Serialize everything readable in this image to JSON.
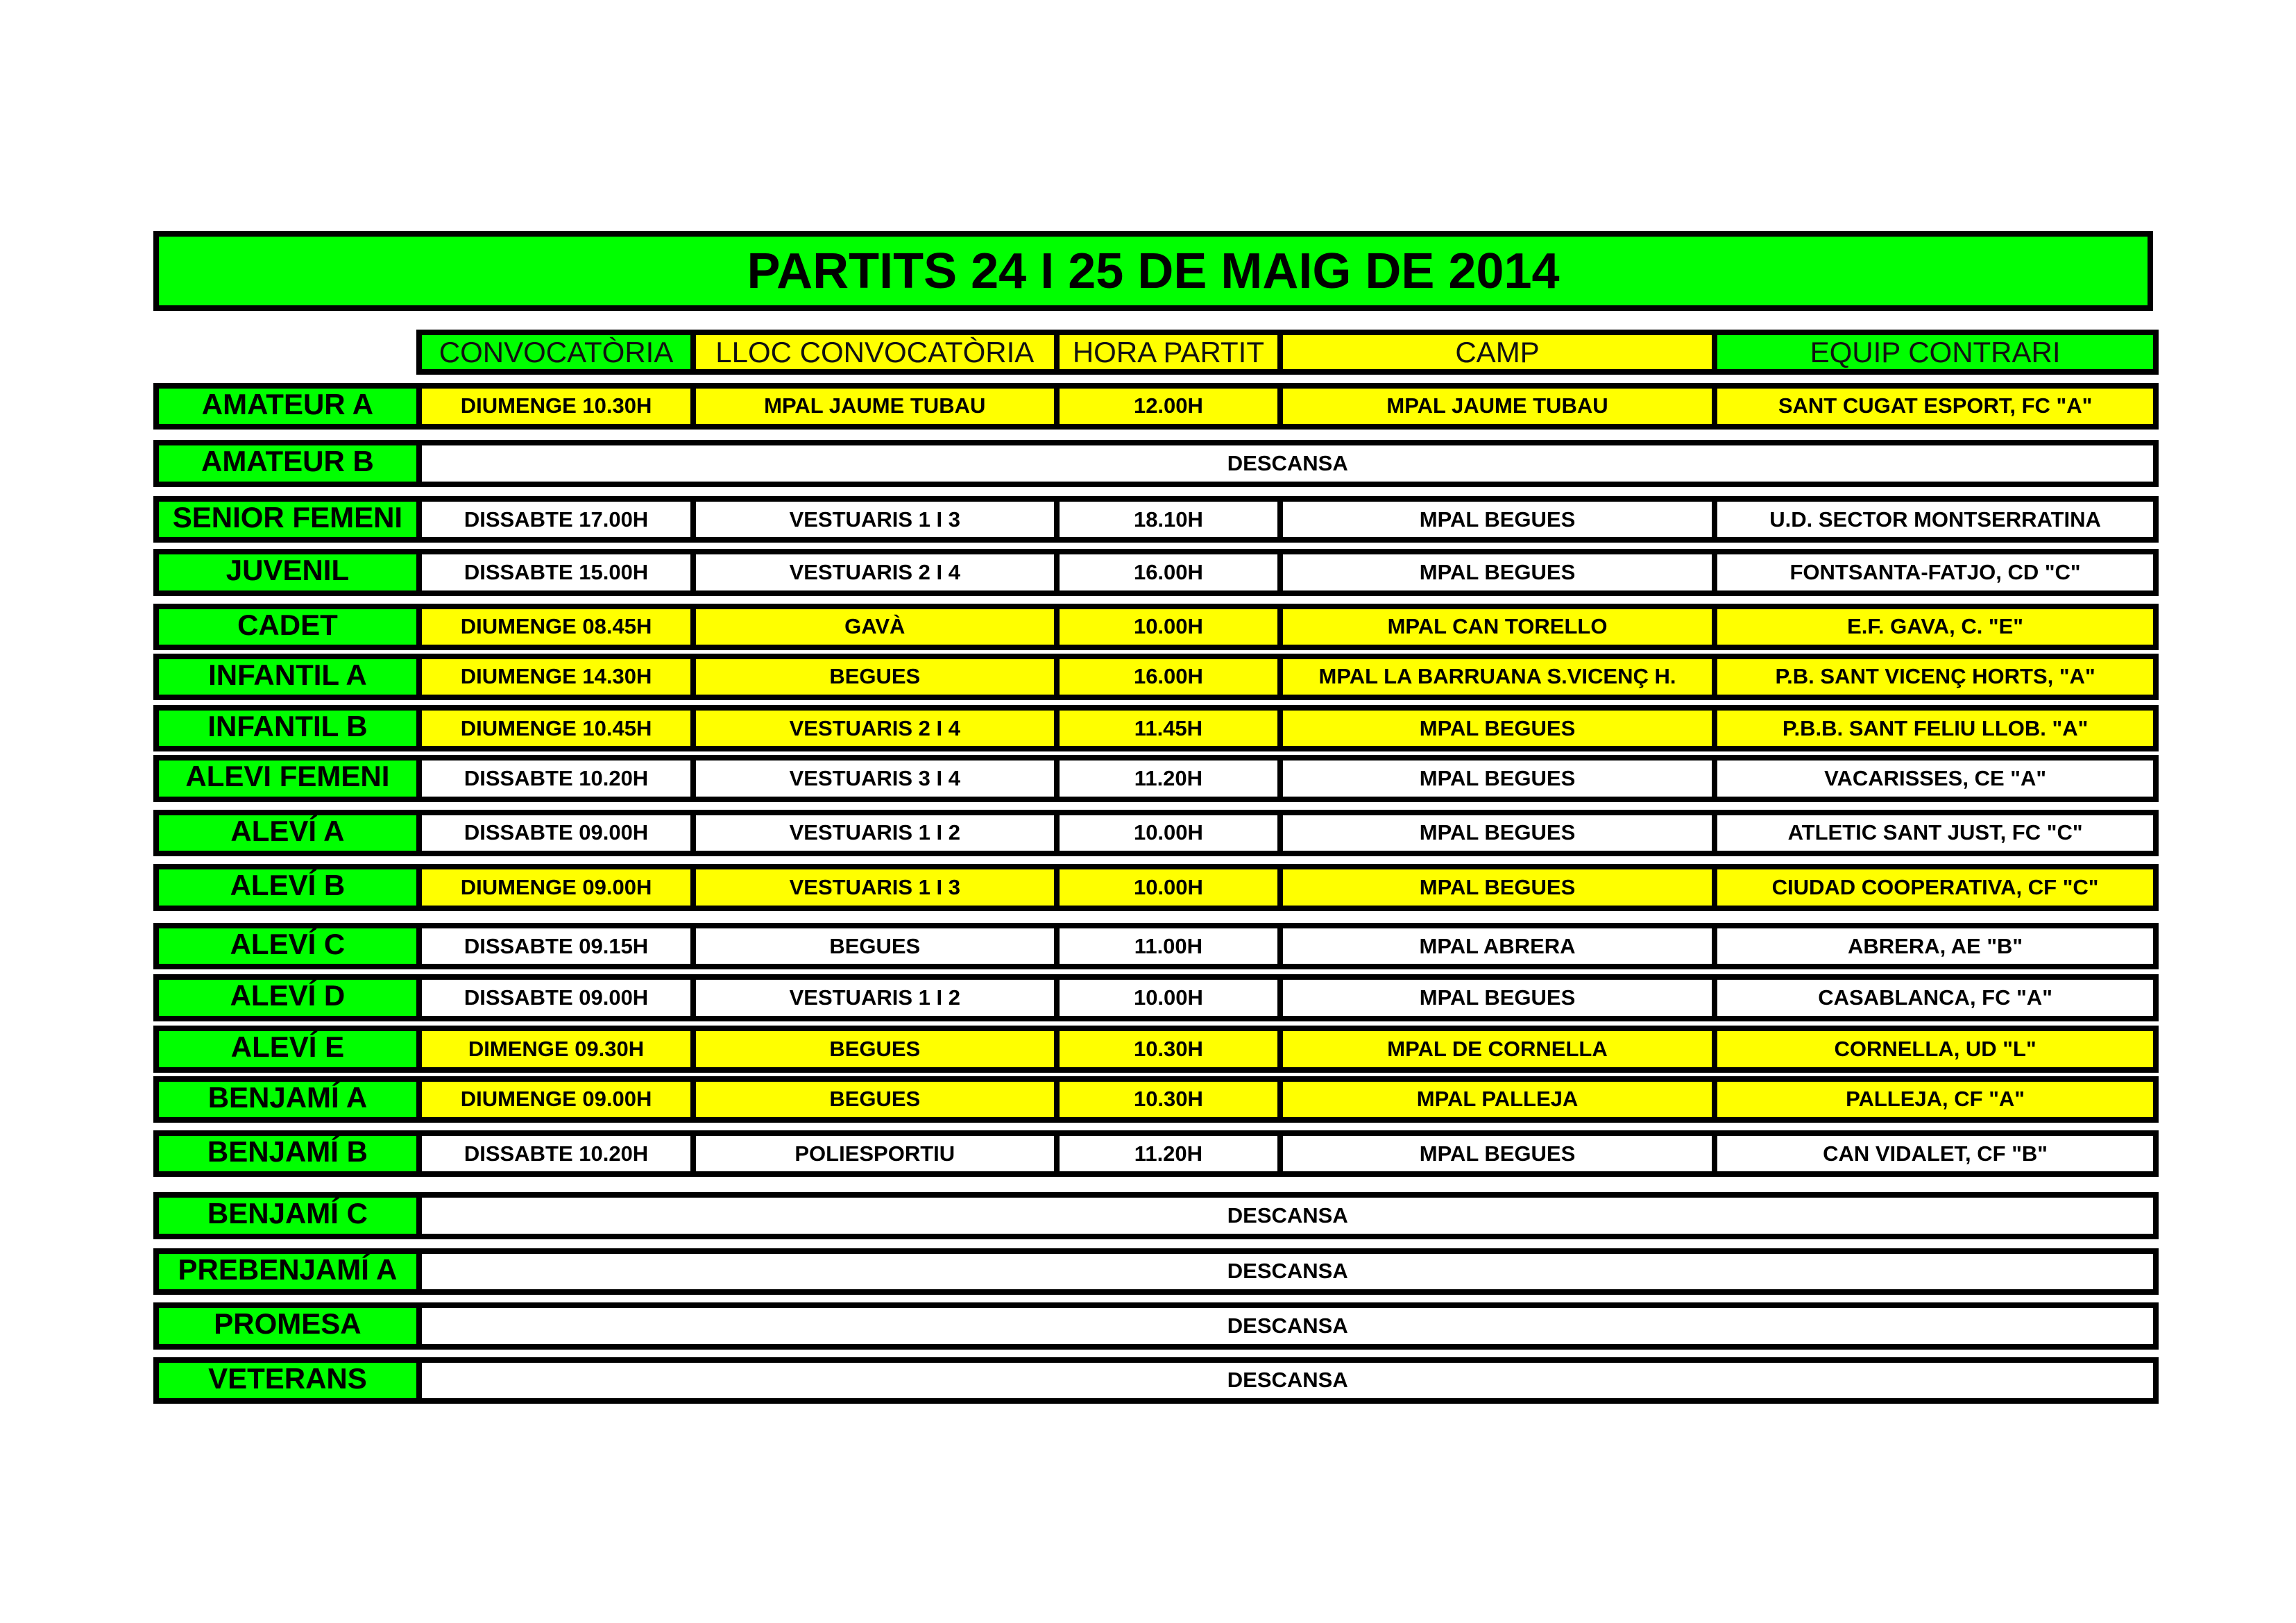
{
  "title": "PARTITS 24 I 25 DE MAIG DE 2014",
  "header": [
    "CONVOCATÒRIA",
    "LLOC CONVOCATÒRIA",
    "HORA PARTIT",
    "CAMP",
    "EQUIP CONTRARI"
  ],
  "rows": [
    {
      "team": "AMATEUR A",
      "color": "#ffff00",
      "cells": [
        "DIUMENGE 10.30H",
        "MPAL JAUME TUBAU",
        "12.00H",
        "MPAL JAUME TUBAU",
        "SANT CUGAT ESPORT, FC \"A\""
      ]
    },
    {
      "team": "AMATEUR B",
      "color": "#ffffff",
      "descansa": "DESCANSA"
    },
    {
      "team": "SENIOR FEMENI",
      "color": "#ffffff",
      "cells": [
        "DISSABTE 17.00H",
        "VESTUARIS 1 I 3",
        "18.10H",
        "MPAL BEGUES",
        "U.D. SECTOR MONTSERRATINA"
      ]
    },
    {
      "team": "JUVENIL",
      "color": "#ffffff",
      "cells": [
        "DISSABTE 15.00H",
        "VESTUARIS 2 I 4",
        "16.00H",
        "MPAL BEGUES",
        "FONTSANTA-FATJO, CD \"C\""
      ]
    },
    {
      "team": "CADET",
      "color": "#ffff00",
      "cells": [
        "DIUMENGE 08.45H",
        "GAVÀ",
        "10.00H",
        "MPAL CAN TORELLO",
        "E.F. GAVA, C. \"E\""
      ]
    },
    {
      "team": "INFANTIL A",
      "color": "#ffff00",
      "cells": [
        "DIUMENGE 14.30H",
        "BEGUES",
        "16.00H",
        "MPAL LA BARRUANA S.VICENÇ H.",
        "P.B. SANT VICENÇ HORTS, \"A\""
      ]
    },
    {
      "team": "INFANTIL B",
      "color": "#ffff00",
      "cells": [
        "DIUMENGE 10.45H",
        "VESTUARIS 2 I 4",
        "11.45H",
        "MPAL BEGUES",
        "P.B.B. SANT FELIU LLOB. \"A\""
      ]
    },
    {
      "team": "ALEVI FEMENI",
      "color": "#ffffff",
      "cells": [
        "DISSABTE 10.20H",
        "VESTUARIS 3 I 4",
        "11.20H",
        "MPAL BEGUES",
        "VACARISSES, CE \"A\""
      ]
    },
    {
      "team": "ALEVÍ A",
      "color": "#ffffff",
      "cells": [
        "DISSABTE 09.00H",
        "VESTUARIS 1 I 2",
        "10.00H",
        "MPAL BEGUES",
        "ATLETIC SANT JUST, FC \"C\""
      ]
    },
    {
      "team": "ALEVÍ B",
      "color": "#ffff00",
      "cells": [
        "DIUMENGE 09.00H",
        "VESTUARIS 1 I 3",
        "10.00H",
        "MPAL BEGUES",
        "CIUDAD COOPERATIVA, CF \"C\""
      ]
    },
    {
      "team": "ALEVÍ C",
      "color": "#ffffff",
      "cells": [
        "DISSABTE 09.15H",
        "BEGUES",
        "11.00H",
        "MPAL ABRERA",
        "ABRERA, AE \"B\""
      ]
    },
    {
      "team": "ALEVÍ D",
      "color": "#ffffff",
      "cells": [
        "DISSABTE 09.00H",
        "VESTUARIS 1 I 2",
        "10.00H",
        "MPAL BEGUES",
        "CASABLANCA, FC \"A\""
      ]
    },
    {
      "team": "ALEVÍ E",
      "color": "#ffff00",
      "cells": [
        "DIMENGE 09.30H",
        "BEGUES",
        "10.30H",
        "MPAL DE CORNELLA",
        "CORNELLA, UD \"L\""
      ]
    },
    {
      "team": "BENJAMÍ A",
      "color": "#ffff00",
      "cells": [
        "DIUMENGE 09.00H",
        "BEGUES",
        "10.30H",
        "MPAL PALLEJA",
        "PALLEJA, CF \"A\""
      ]
    },
    {
      "team": "BENJAMÍ B",
      "color": "#ffffff",
      "cells": [
        "DISSABTE 10.20H",
        "POLIESPORTIU",
        "11.20H",
        "MPAL BEGUES",
        "CAN VIDALET, CF \"B\""
      ]
    },
    {
      "team": "BENJAMÍ C",
      "color": "#ffffff",
      "descansa": "DESCANSA"
    },
    {
      "team": "PREBENJAMÍ A",
      "color": "#ffffff",
      "descansa": "DESCANSA"
    },
    {
      "team": "PROMESA",
      "color": "#ffffff",
      "descansa": "DESCANSA"
    },
    {
      "team": "VETERANS",
      "color": "#ffffff",
      "descansa": "DESCANSA"
    }
  ]
}
